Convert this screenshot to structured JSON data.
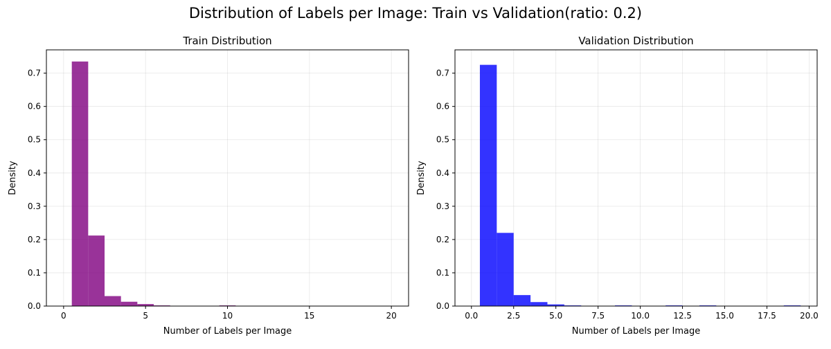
{
  "suptitle": "Distribution of Labels per Image: Train vs Validation(ratio: 0.2)",
  "chart_data": [
    {
      "type": "bar",
      "title": "Train Distribution",
      "xlabel": "Number of Labels per Image",
      "ylabel": "Density",
      "xlim": [
        -1.05,
        21.05
      ],
      "ylim": [
        0,
        0.77
      ],
      "xticks": [
        0,
        5,
        10,
        15,
        20
      ],
      "xtick_labels": [
        "0",
        "5",
        "10",
        "15",
        "20"
      ],
      "yticks": [
        0.0,
        0.1,
        0.2,
        0.3,
        0.4,
        0.5,
        0.6,
        0.7
      ],
      "ytick_labels": [
        "0.0",
        "0.1",
        "0.2",
        "0.3",
        "0.4",
        "0.5",
        "0.6",
        "0.7"
      ],
      "grid": true,
      "color": "#800080",
      "opacity": 0.8,
      "bin_edges": [
        0.5,
        1.5,
        2.5,
        3.5,
        4.5,
        5.5,
        6.5,
        7.5,
        8.5,
        9.5,
        10.5,
        11.5,
        12.5,
        13.5,
        14.5,
        15.5,
        16.5,
        17.5,
        18.5,
        19.5,
        20.5
      ],
      "values": [
        0.735,
        0.212,
        0.03,
        0.013,
        0.006,
        0.002,
        0.001,
        0.001,
        0.001,
        0.002,
        0.0,
        0.0,
        0.0,
        0.001,
        0.0,
        0.0,
        0.0,
        0.0,
        0.0,
        0.0
      ]
    },
    {
      "type": "bar",
      "title": "Validation Distribution",
      "xlabel": "Number of Labels per Image",
      "ylabel": "Density",
      "xlim": [
        -0.975,
        20.475
      ],
      "ylim": [
        0,
        0.77
      ],
      "xticks": [
        0,
        2.5,
        5,
        7.5,
        10,
        12.5,
        15,
        17.5,
        20
      ],
      "xtick_labels": [
        "0.0",
        "2.5",
        "5.0",
        "7.5",
        "10.0",
        "12.5",
        "15.0",
        "17.5",
        "20.0"
      ],
      "yticks": [
        0.0,
        0.1,
        0.2,
        0.3,
        0.4,
        0.5,
        0.6,
        0.7
      ],
      "ytick_labels": [
        "0.0",
        "0.1",
        "0.2",
        "0.3",
        "0.4",
        "0.5",
        "0.6",
        "0.7"
      ],
      "grid": true,
      "color": "#0000ff",
      "opacity": 0.8,
      "bin_edges": [
        0.5,
        1.5,
        2.5,
        3.5,
        4.5,
        5.5,
        6.5,
        7.5,
        8.5,
        9.5,
        10.5,
        11.5,
        12.5,
        13.5,
        14.5,
        15.5,
        16.5,
        17.5,
        18.5,
        19.5
      ],
      "values": [
        0.725,
        0.22,
        0.033,
        0.012,
        0.005,
        0.002,
        0.0,
        0.0,
        0.002,
        0.0,
        0.0,
        0.002,
        0.0,
        0.002,
        0.0,
        0.0,
        0.0,
        0.0,
        0.002
      ]
    }
  ]
}
